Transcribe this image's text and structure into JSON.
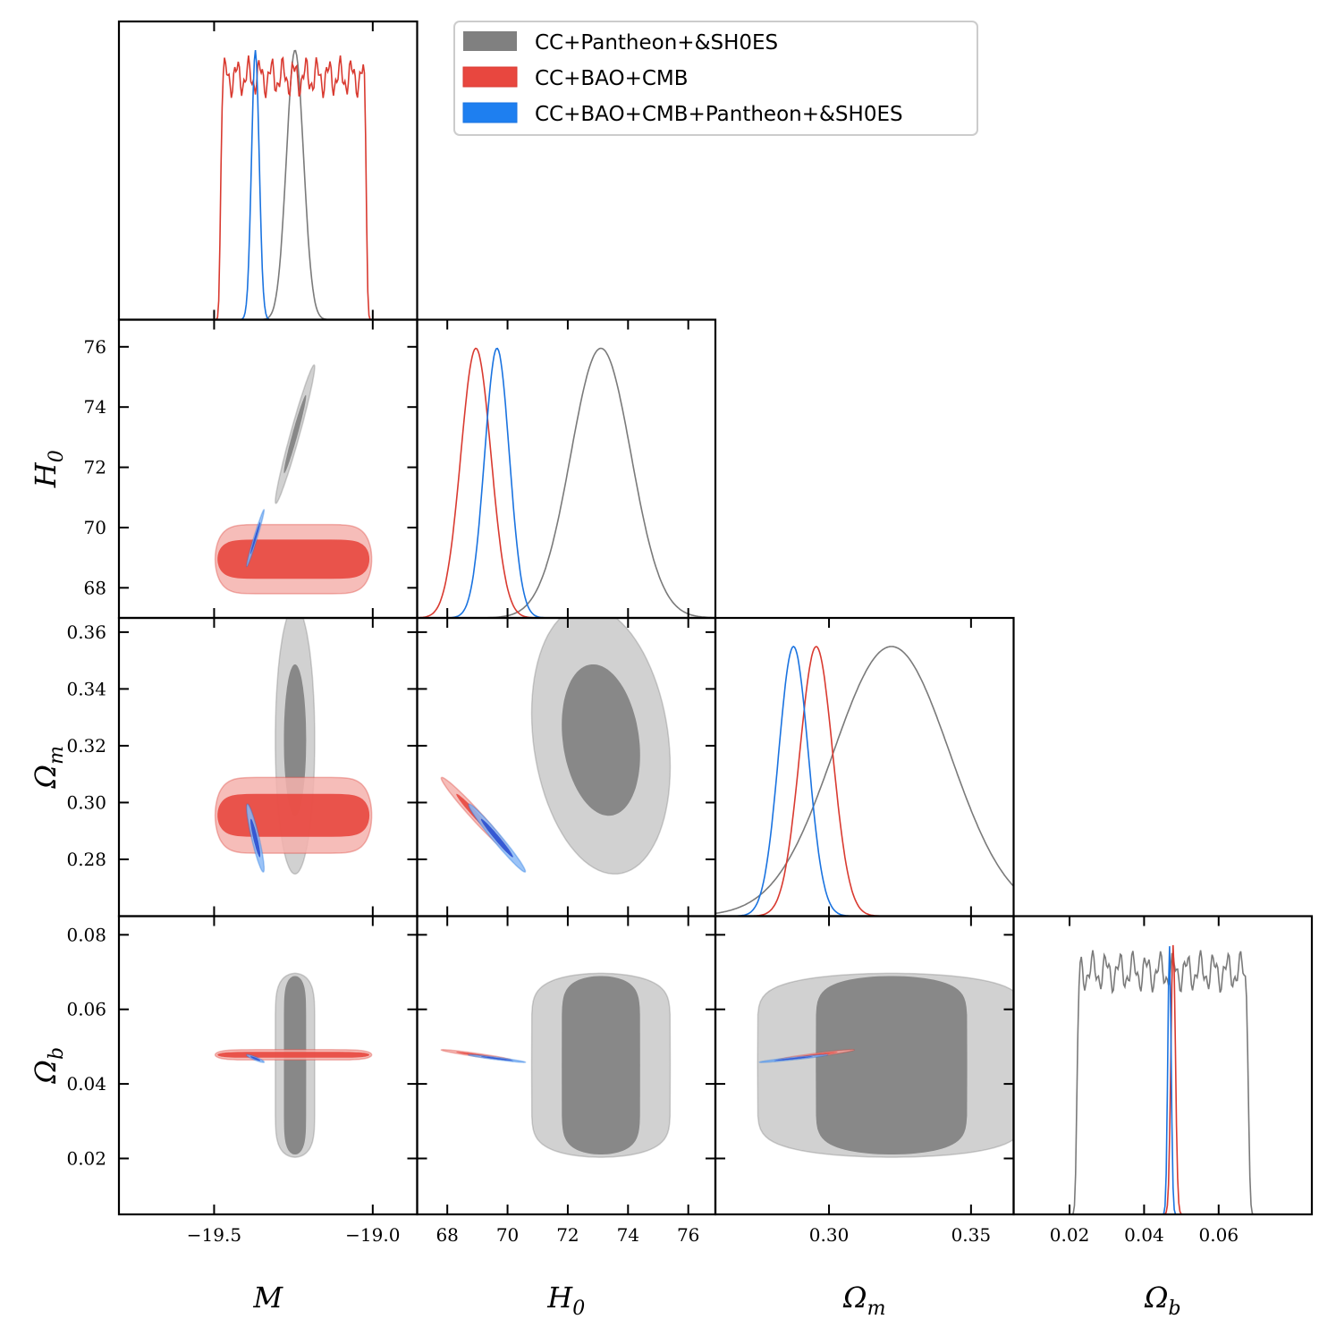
{
  "chart_data": {
    "type": "triangle-corner-plot",
    "params": [
      "M",
      "H0",
      "Omega_m",
      "Omega_b"
    ],
    "axis_labels": {
      "M": {
        "main": "M",
        "sub": ""
      },
      "H0": {
        "main": "H",
        "sub": "0"
      },
      "Omega_m": {
        "main": "Ω",
        "sub": "m"
      },
      "Omega_b": {
        "main": "Ω",
        "sub": "b"
      }
    },
    "ranges": {
      "M": [
        -19.8,
        -18.86
      ],
      "H0": [
        67.0,
        76.9
      ],
      "Omega_m": [
        0.26,
        0.365
      ],
      "Omega_b": [
        0.005,
        0.085
      ]
    },
    "ticks": {
      "M": [
        -19.5,
        -19.0
      ],
      "H0": [
        68,
        70,
        72,
        74,
        76
      ],
      "Omega_m": [
        0.28,
        0.3,
        0.32,
        0.34,
        0.36
      ],
      "Omega_b": [
        0.02,
        0.04,
        0.06,
        0.08
      ]
    },
    "tick_labels": {
      "M": [
        "−19.5",
        "−19.0"
      ],
      "H0": [
        "68",
        "70",
        "72",
        "74",
        "76"
      ],
      "Omega_m_x": [
        "0.30",
        "0.35"
      ],
      "Omega_m_y": [
        "0.28",
        "0.30",
        "0.32",
        "0.34",
        "0.36"
      ],
      "Omega_b": [
        "0.02",
        "0.04",
        "0.06",
        "0.08"
      ]
    },
    "x_ticks_bottom": {
      "Omega_m": [
        0.3,
        0.35
      ],
      "Omega_b": [
        0.02,
        0.04,
        0.06
      ]
    },
    "legend": [
      {
        "label": "CC+Pantheon+&SH0ES",
        "color": "#808080"
      },
      {
        "label": "CC+BAO+CMB",
        "color": "#e8473f"
      },
      {
        "label": "CC+BAO+CMB+Pantheon+&SH0ES",
        "color": "#1e7ff0"
      }
    ],
    "series": [
      {
        "name": "CC+Pantheon+&SH0ES",
        "color": "#808080",
        "line_color": "#7a7a7a",
        "inner_fill": "#808080",
        "outer_fill": "#c9c9c9",
        "mean": {
          "M": -19.245,
          "H0": 73.1,
          "Omega_m": 0.322,
          "Omega_b": 0.046
        },
        "sigma": {
          "M": 0.027,
          "H0": 1.0,
          "Omega_m": 0.0205,
          "Omega_b": 0.0135
        },
        "flat": {
          "Omega_b": [
            0.022,
            0.068
          ]
        },
        "corr": {
          "M-H0": 0.97,
          "M-Omega_m": 0.0,
          "M-Omega_b": 0.0,
          "H0-Omega_m": -0.2,
          "H0-Omega_b": 0.0,
          "Omega_m-Omega_b": 0.0
        }
      },
      {
        "name": "CC+BAO+CMB",
        "color": "#e8473f",
        "line_color": "#d93a30",
        "inner_fill": "#e8473f",
        "outer_fill": "#f4b2ad",
        "mean": {
          "M": -19.245,
          "H0": 68.95,
          "Omega_m": 0.2955,
          "Omega_b": 0.0478
        },
        "sigma": {
          "M": 0.12,
          "H0": 0.5,
          "Omega_m": 0.0058,
          "Omega_b": 0.0006
        },
        "flat": {
          "M": [
            -19.48,
            -19.02
          ]
        },
        "corr": {
          "M-H0": 0.0,
          "M-Omega_m": 0.0,
          "M-Omega_b": 0.0,
          "H0-Omega_m": -0.98,
          "H0-Omega_b": -0.95,
          "Omega_m-Omega_b": 0.95
        }
      },
      {
        "name": "CC+BAO+CMB+Pantheon+&SH0ES",
        "color": "#1e7ff0",
        "line_color": "#1a73e0",
        "inner_fill": "#2a4fd0",
        "outer_fill": "#8ab8f6",
        "mean": {
          "M": -19.37,
          "H0": 69.65,
          "Omega_m": 0.2875,
          "Omega_b": 0.0468
        },
        "sigma": {
          "M": 0.012,
          "H0": 0.41,
          "Omega_m": 0.0052,
          "Omega_b": 0.00045
        },
        "corr": {
          "M-H0": 0.98,
          "M-Omega_m": -0.9,
          "M-Omega_b": -0.9,
          "H0-Omega_m": -0.98,
          "H0-Omega_b": -0.95,
          "Omega_m-Omega_b": 0.95
        }
      }
    ]
  }
}
